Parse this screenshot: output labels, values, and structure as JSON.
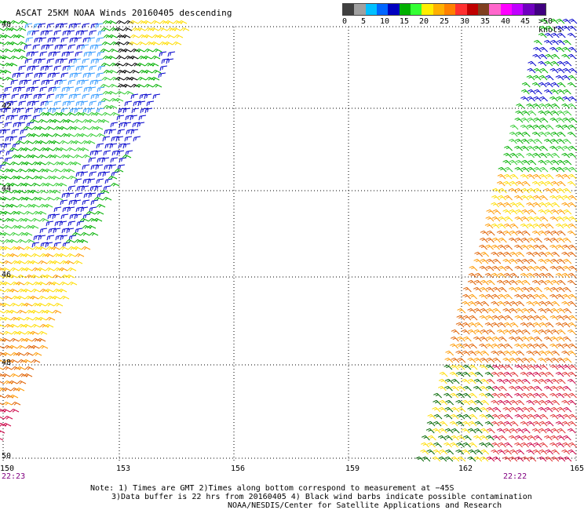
{
  "title": "ASCAT 25KM NOAA Winds 20160405 descending",
  "colorbar": {
    "colors": [
      "#404040",
      "#a0a0a0",
      "#00c0ff",
      "#0066ff",
      "#0000c0",
      "#00b000",
      "#33ff33",
      "#ffee00",
      "#ffb000",
      "#ff8000",
      "#ff3030",
      "#c00000",
      "#804020",
      "#ff66cc",
      "#ff00ff",
      "#c000ff",
      "#7000c0",
      "#400080"
    ],
    "labels": [
      "0",
      "5",
      "10",
      "15",
      "20",
      "25",
      "30",
      "35",
      "40",
      "45",
      ">50 knots"
    ]
  },
  "lat_labels": [
    "40",
    "42",
    "44",
    "46",
    "48",
    "50"
  ],
  "lon_labels": [
    "150",
    "153",
    "156",
    "159",
    "162",
    "165"
  ],
  "time_left": "22:23",
  "time_right": "22:22",
  "note_line1": "Note: 1) Times are GMT 2)Times along bottom correspond to measurement at −45S",
  "note_line2": "3)Data buffer is 22 hrs from 20160405 4) Black wind barbs indicate possible contamination",
  "note_line3": "NOAA/NESDIS/Center for Satellite Applications and Research"
}
